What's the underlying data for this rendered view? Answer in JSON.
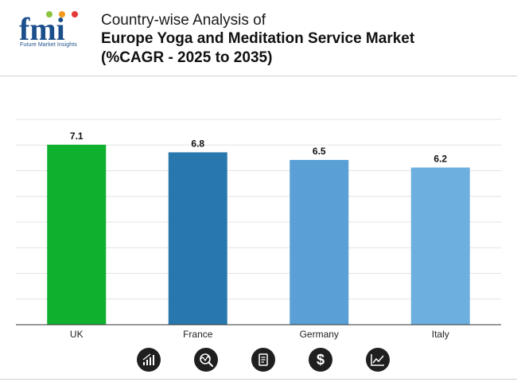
{
  "brand": {
    "logo_text": "fmi",
    "tagline": "Future Market Insights"
  },
  "header": {
    "title_line1": "Country-wise Analysis of",
    "title_line2": "Europe Yoga and Meditation Service Market",
    "title_line3": "(%CAGR - 2025 to 2035)"
  },
  "chart_data": {
    "type": "bar",
    "title": "Country-wise Analysis of Europe Yoga and Meditation Service Market (%CAGR - 2025 to 2035)",
    "categories": [
      "UK",
      "France",
      "Germany",
      "Italy"
    ],
    "values": [
      7.1,
      6.8,
      6.5,
      6.2
    ],
    "value_labels": [
      "7.1",
      "6.8",
      "6.5",
      "6.2"
    ],
    "colors": [
      "#0fb02e",
      "#2878ae",
      "#5aa0d6",
      "#6db0e0"
    ],
    "xlabel": "",
    "ylabel": "",
    "ylim": [
      0,
      8.1
    ],
    "grid": true,
    "legend": "none"
  },
  "footer_icons": [
    "bar-growth-icon",
    "analysis-icon",
    "report-icon",
    "dollar-icon",
    "trend-chart-icon"
  ],
  "colors": {
    "header_rule": "#cfcfcf",
    "grid": "#e3e3e3",
    "icon_bg": "#1f1f1f"
  }
}
